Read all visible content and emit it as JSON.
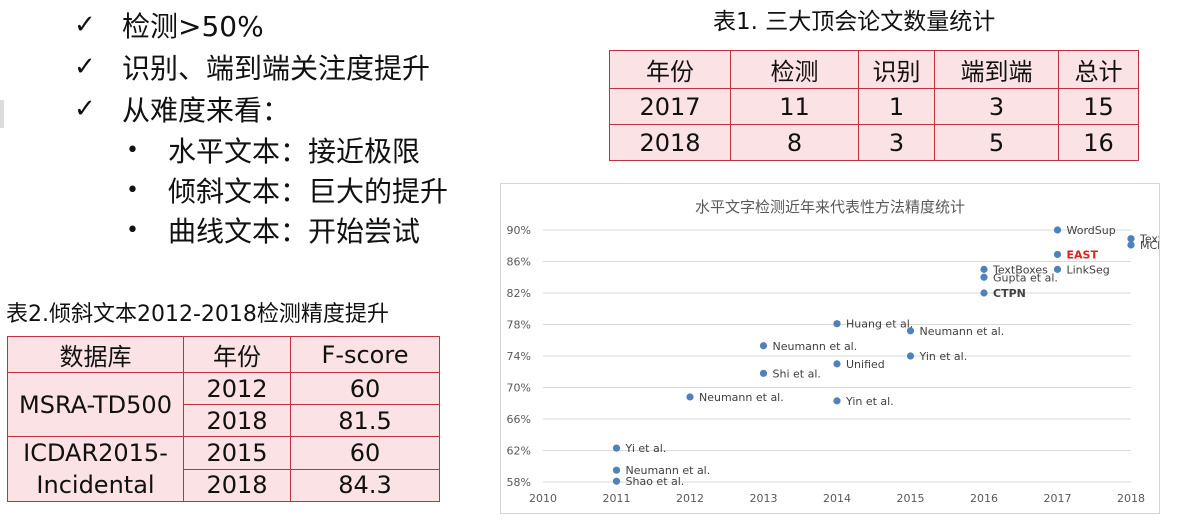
{
  "bullets": [
    {
      "mark": "✓",
      "text": "检测>50%",
      "sub": []
    },
    {
      "mark": "✓",
      "text": "识别、端到端关注度提升",
      "sub": []
    },
    {
      "mark": "✓",
      "text": "从难度来看：",
      "sub": [
        "水平文本：接近极限",
        "倾斜文本：巨大的提升",
        "曲线文本：开始尝试"
      ]
    }
  ],
  "table1": {
    "title": "表1. 三大顶会论文数量统计",
    "header": [
      "年份",
      "检测",
      "识别",
      "端到端",
      "总计"
    ],
    "rows": [
      [
        "2017",
        "11",
        "1",
        "3",
        "15"
      ],
      [
        "2018",
        "8",
        "3",
        "5",
        "16"
      ]
    ]
  },
  "table2": {
    "title": "表2.倾斜文本2012-2018检测精度提升",
    "header": [
      "数据库",
      "年份",
      "F-score"
    ],
    "groups": [
      {
        "db": "MSRA-TD500",
        "rows": [
          [
            "2012",
            "60"
          ],
          [
            "2018",
            "81.5"
          ]
        ]
      },
      {
        "db": "ICDAR2015-Incidental",
        "rows": [
          [
            "2015",
            "60"
          ],
          [
            "2018",
            "84.3"
          ]
        ]
      }
    ]
  },
  "chart_data": {
    "type": "scatter",
    "title": "水平文字检测近年来代表性方法精度统计",
    "xlim": [
      2010,
      2018
    ],
    "ylim": [
      58,
      90
    ],
    "x_ticks": [
      "2010",
      "2011",
      "2012",
      "2013",
      "2014",
      "2015",
      "2016",
      "2017",
      "2018"
    ],
    "y_ticks": [
      "58%",
      "62%",
      "66%",
      "70%",
      "74%",
      "78%",
      "82%",
      "86%",
      "90%"
    ],
    "grid": true,
    "points": [
      {
        "x": 2011,
        "y": 62.3,
        "label": "Yi et al."
      },
      {
        "x": 2011,
        "y": 59.5,
        "label": "Neumann et al."
      },
      {
        "x": 2011,
        "y": 58.1,
        "label": "Shao et al."
      },
      {
        "x": 2012,
        "y": 68.8,
        "label": "Neumann et al."
      },
      {
        "x": 2013,
        "y": 75.3,
        "label": "Neumann et al."
      },
      {
        "x": 2013,
        "y": 71.8,
        "label": "Shi et al."
      },
      {
        "x": 2014,
        "y": 78.1,
        "label": "Huang et al."
      },
      {
        "x": 2014,
        "y": 73.0,
        "label": "Unified"
      },
      {
        "x": 2014,
        "y": 68.3,
        "label": "Yin et al."
      },
      {
        "x": 2015,
        "y": 77.2,
        "label": "Neumann et al."
      },
      {
        "x": 2015,
        "y": 74.0,
        "label": "Yin et al."
      },
      {
        "x": 2016,
        "y": 85.0,
        "label": "TextBoxes"
      },
      {
        "x": 2016,
        "y": 84.0,
        "label": "Gupta et al."
      },
      {
        "x": 2016,
        "y": 82.0,
        "label": "CTPN",
        "emphasis": "bold"
      },
      {
        "x": 2017,
        "y": 90.0,
        "label": "WordSup"
      },
      {
        "x": 2017,
        "y": 86.9,
        "label": "EAST",
        "emphasis": "red"
      },
      {
        "x": 2017,
        "y": 85.0,
        "label": "LinkSeg"
      },
      {
        "x": 2018,
        "y": 88.9,
        "label": "TextBoxes++"
      },
      {
        "x": 2018,
        "y": 88.1,
        "label": "MCN"
      }
    ]
  },
  "colors": {
    "table_border": "#c0323f",
    "table_fill": "#fbe2e4",
    "point": "#4f81bd",
    "grid": "#d9d9d9",
    "east_label": "#e02020"
  }
}
